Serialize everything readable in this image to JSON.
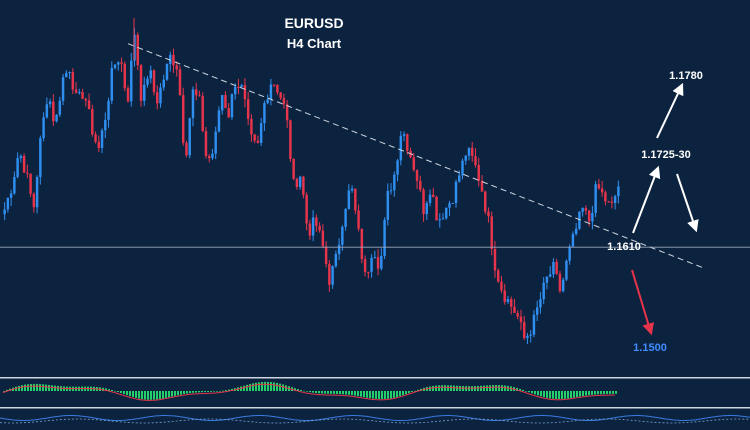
{
  "title": "EURUSD",
  "subtitle": "H4 Chart",
  "colors": {
    "background": "#0c2340",
    "bull_candle": "#2f8ff0",
    "bear_candle": "#e8344a",
    "trendline": "#d0d6e0",
    "arrow_up": "#ffffff",
    "arrow_down": "#e8344a",
    "target_label": "#3f8cff",
    "histogram": "#25d06a",
    "signal_line": "#e8344a"
  },
  "chart_data": {
    "type": "candlestick",
    "title": "EURUSD",
    "subtitle": "H4 Chart",
    "ylim": [
      1.146,
      1.176
    ],
    "close_path": [
      1.16,
      1.162,
      1.165,
      1.163,
      1.16,
      1.166,
      1.17,
      1.167,
      1.171,
      1.172,
      1.169,
      1.17,
      1.167,
      1.165,
      1.168,
      1.172,
      1.173,
      1.169,
      1.175,
      1.169,
      1.172,
      1.169,
      1.171,
      1.173,
      1.172,
      1.164,
      1.17,
      1.169,
      1.164,
      1.165,
      1.17,
      1.168,
      1.171,
      1.17,
      1.166,
      1.165,
      1.169,
      1.171,
      1.17,
      1.168,
      1.162,
      1.163,
      1.158,
      1.159,
      1.157,
      1.154,
      1.156,
      1.16,
      1.162,
      1.158,
      1.154,
      1.157,
      1.155,
      1.161,
      1.163,
      1.167,
      1.165,
      1.163,
      1.16,
      1.162,
      1.159,
      1.16,
      1.161,
      1.163,
      1.165,
      1.164,
      1.162,
      1.159,
      1.155,
      1.153,
      1.152,
      1.151,
      1.149,
      1.15,
      1.152,
      1.154,
      1.155,
      1.153,
      1.156,
      1.158,
      1.16,
      1.159,
      1.162,
      1.161,
      1.16,
      1.162
    ],
    "trendline": {
      "from": 1.174,
      "to": 1.155
    },
    "horizontal_level": 1.1568,
    "levels": [
      {
        "label": "1.1780",
        "price": 1.178
      },
      {
        "label": "1.1725-30",
        "price": 1.1727
      },
      {
        "label": "1.1610",
        "price": 1.161
      },
      {
        "label": "1.1500",
        "price": 1.15
      }
    ],
    "scenarios": [
      {
        "direction": "up",
        "from": 1.161,
        "to": 1.1725,
        "then": 1.178
      },
      {
        "direction": "down",
        "from": 1.161,
        "to": 1.15
      }
    ],
    "oscillator": {
      "type": "histogram"
    }
  }
}
